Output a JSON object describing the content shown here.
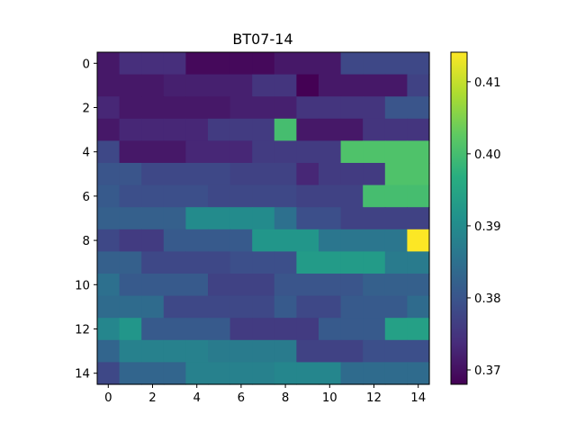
{
  "chart_data": {
    "type": "heatmap",
    "title": "BT07-14",
    "xlabel": "",
    "ylabel": "",
    "x_ticks": [
      "0",
      "2",
      "4",
      "6",
      "8",
      "10",
      "12",
      "14"
    ],
    "y_ticks": [
      "0",
      "2",
      "4",
      "6",
      "8",
      "10",
      "12",
      "14"
    ],
    "colormap": "viridis",
    "vmin": 0.368,
    "vmax": 0.4141,
    "colorbar_ticks": [
      "0.37",
      "0.38",
      "0.39",
      "0.40",
      "0.41"
    ],
    "colorbar_tick_values": [
      0.37,
      0.38,
      0.39,
      0.4,
      0.41
    ],
    "grid": false,
    "values": [
      [
        0.371,
        0.374,
        0.374,
        0.374,
        0.369,
        0.369,
        0.369,
        0.369,
        0.371,
        0.371,
        0.371,
        0.378,
        0.378,
        0.378,
        0.378
      ],
      [
        0.371,
        0.371,
        0.371,
        0.372,
        0.372,
        0.372,
        0.372,
        0.375,
        0.375,
        0.368,
        0.371,
        0.371,
        0.371,
        0.371,
        0.377
      ],
      [
        0.373,
        0.371,
        0.371,
        0.371,
        0.371,
        0.371,
        0.372,
        0.372,
        0.372,
        0.375,
        0.375,
        0.375,
        0.375,
        0.38,
        0.38
      ],
      [
        0.371,
        0.373,
        0.373,
        0.373,
        0.373,
        0.376,
        0.376,
        0.376,
        0.4,
        0.371,
        0.371,
        0.371,
        0.375,
        0.375,
        0.375
      ],
      [
        0.378,
        0.371,
        0.371,
        0.371,
        0.373,
        0.373,
        0.373,
        0.376,
        0.376,
        0.376,
        0.376,
        0.401,
        0.401,
        0.401,
        0.401
      ],
      [
        0.38,
        0.38,
        0.378,
        0.378,
        0.378,
        0.378,
        0.377,
        0.377,
        0.377,
        0.373,
        0.376,
        0.376,
        0.376,
        0.401,
        0.401
      ],
      [
        0.381,
        0.379,
        0.379,
        0.379,
        0.379,
        0.378,
        0.378,
        0.378,
        0.378,
        0.377,
        0.377,
        0.377,
        0.4,
        0.4,
        0.4
      ],
      [
        0.382,
        0.382,
        0.382,
        0.382,
        0.39,
        0.39,
        0.39,
        0.39,
        0.385,
        0.379,
        0.379,
        0.377,
        0.377,
        0.377,
        0.377
      ],
      [
        0.378,
        0.376,
        0.376,
        0.381,
        0.381,
        0.381,
        0.381,
        0.392,
        0.392,
        0.392,
        0.386,
        0.386,
        0.386,
        0.386,
        0.414
      ],
      [
        0.382,
        0.382,
        0.378,
        0.378,
        0.378,
        0.378,
        0.379,
        0.379,
        0.379,
        0.393,
        0.393,
        0.393,
        0.393,
        0.387,
        0.387
      ],
      [
        0.385,
        0.381,
        0.381,
        0.381,
        0.381,
        0.377,
        0.377,
        0.377,
        0.38,
        0.38,
        0.38,
        0.38,
        0.382,
        0.382,
        0.382
      ],
      [
        0.384,
        0.384,
        0.384,
        0.378,
        0.378,
        0.378,
        0.378,
        0.378,
        0.381,
        0.378,
        0.378,
        0.381,
        0.381,
        0.381,
        0.384
      ],
      [
        0.389,
        0.392,
        0.381,
        0.381,
        0.381,
        0.381,
        0.376,
        0.376,
        0.376,
        0.376,
        0.381,
        0.381,
        0.381,
        0.394,
        0.394
      ],
      [
        0.383,
        0.388,
        0.388,
        0.388,
        0.388,
        0.387,
        0.387,
        0.387,
        0.387,
        0.377,
        0.377,
        0.377,
        0.379,
        0.379,
        0.379
      ],
      [
        0.378,
        0.383,
        0.383,
        0.383,
        0.388,
        0.388,
        0.388,
        0.388,
        0.389,
        0.389,
        0.389,
        0.384,
        0.384,
        0.384,
        0.384
      ]
    ]
  }
}
